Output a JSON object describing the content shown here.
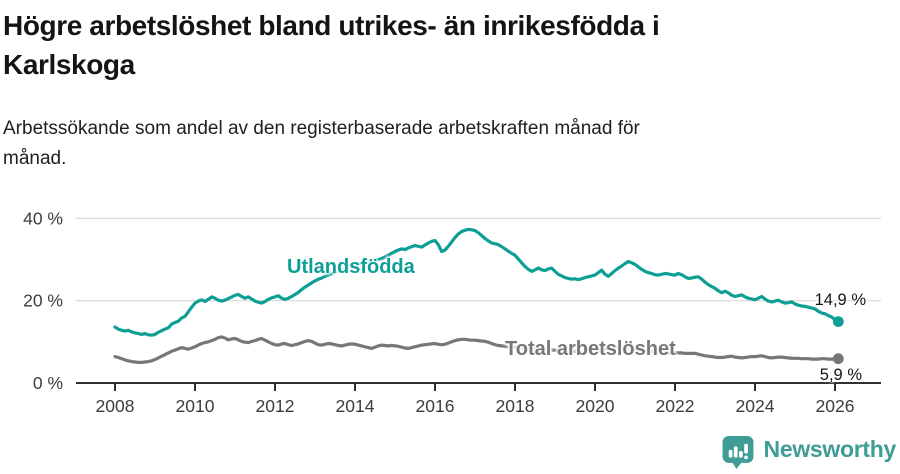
{
  "header": {
    "title_lines": [
      "Högre arbetslöshet bland utrikes- än inrikesfödda i",
      "Karlskoga"
    ],
    "subtitle_lines": [
      "Arbetssökande som andel av den registerbaserade arbetskraften månad för",
      "månad."
    ]
  },
  "logo": {
    "text": "Newsworthy",
    "color": "#3f9d96"
  },
  "chart_data": {
    "type": "line",
    "title": "Högre arbetslöshet bland utrikes- än inrikesfödda i Karlskoga",
    "subtitle": "Arbetssökande som andel av den registerbaserade arbetskraften månad för månad.",
    "x_unit": "decimal-year (monthly steps)",
    "x_start": 2008.0,
    "x_step": 0.0833333,
    "xlim": [
      2007.0,
      2027.1
    ],
    "ylim": [
      0,
      43
    ],
    "grid_on": true,
    "grid_values": [
      20,
      40
    ],
    "x_ticks": [
      2008,
      2010,
      2012,
      2014,
      2016,
      2018,
      2020,
      2022,
      2024,
      2026
    ],
    "y_ticks": [
      {
        "v": 0,
        "label": "0 %"
      },
      {
        "v": 20,
        "label": "20 %"
      },
      {
        "v": 40,
        "label": "40 %"
      }
    ],
    "colors": {
      "grid": "#dcdcdc",
      "axis": "#2f2f2f",
      "tick_text": "#3c3c3c",
      "value_text": "#141414"
    },
    "series": [
      {
        "name": "Utlandsfödda",
        "color": "#0d9f96",
        "end_label": "14,9 %",
        "end_value": 14.9,
        "values": [
          13.6,
          13.1,
          12.8,
          12.6,
          12.8,
          12.4,
          12.2,
          12.0,
          11.8,
          12.0,
          11.7,
          11.6,
          11.8,
          12.3,
          12.7,
          13.1,
          13.4,
          14.3,
          14.7,
          15.0,
          15.8,
          16.2,
          17.3,
          18.4,
          19.4,
          19.9,
          20.2,
          19.8,
          20.3,
          20.9,
          20.6,
          20.1,
          19.9,
          20.1,
          20.5,
          20.9,
          21.3,
          21.5,
          21.0,
          20.6,
          20.9,
          20.4,
          19.9,
          19.6,
          19.4,
          19.8,
          20.3,
          20.7,
          20.9,
          21.2,
          20.6,
          20.3,
          20.6,
          21.0,
          21.5,
          22.0,
          22.7,
          23.3,
          23.8,
          24.3,
          24.8,
          25.2,
          25.5,
          25.9,
          26.2,
          26.6,
          26.9,
          27.2,
          27.5,
          27.8,
          28.1,
          28.4,
          28.7,
          28.9,
          29.1,
          29.3,
          29.5,
          29.7,
          29.8,
          30.0,
          30.2,
          30.6,
          31.0,
          31.5,
          31.9,
          32.3,
          32.6,
          32.4,
          32.8,
          33.1,
          33.4,
          33.2,
          33.0,
          33.5,
          34.0,
          34.4,
          34.6,
          33.6,
          31.9,
          32.3,
          33.2,
          34.3,
          35.3,
          36.2,
          36.8,
          37.1,
          37.3,
          37.2,
          37.0,
          36.5,
          35.8,
          35.1,
          34.5,
          34.0,
          33.8,
          33.6,
          33.1,
          32.6,
          32.0,
          31.5,
          31.0,
          30.1,
          29.2,
          28.3,
          27.6,
          27.1,
          27.5,
          27.9,
          27.5,
          27.3,
          27.7,
          27.9,
          27.1,
          26.4,
          26.0,
          25.6,
          25.4,
          25.2,
          25.3,
          25.1,
          25.3,
          25.6,
          25.8,
          26.0,
          26.2,
          26.8,
          27.4,
          26.4,
          25.9,
          26.6,
          27.3,
          27.9,
          28.4,
          29.0,
          29.5,
          29.2,
          28.8,
          28.2,
          27.6,
          27.1,
          26.8,
          26.6,
          26.3,
          26.2,
          26.4,
          26.6,
          26.5,
          26.3,
          26.2,
          26.6,
          26.3,
          25.8,
          25.4,
          25.5,
          25.7,
          25.8,
          25.2,
          24.5,
          23.9,
          23.4,
          23.0,
          22.4,
          21.9,
          22.3,
          21.9,
          21.3,
          21.0,
          21.2,
          21.4,
          20.9,
          20.6,
          20.4,
          20.2,
          20.6,
          21.0,
          20.4,
          19.9,
          19.7,
          19.9,
          20.1,
          19.7,
          19.4,
          19.5,
          19.7,
          19.2,
          18.9,
          18.7,
          18.6,
          18.4,
          18.2,
          18.0,
          17.4,
          17.0,
          16.8,
          16.4,
          16.0,
          15.4,
          14.9
        ]
      },
      {
        "name": "Total arbetslöshet",
        "color": "#76767b",
        "end_label": "5,9 %",
        "end_value": 5.9,
        "values": [
          6.4,
          6.2,
          5.9,
          5.6,
          5.4,
          5.2,
          5.1,
          5.0,
          5.0,
          5.1,
          5.2,
          5.4,
          5.7,
          6.1,
          6.5,
          6.9,
          7.3,
          7.7,
          8.0,
          8.3,
          8.6,
          8.4,
          8.2,
          8.5,
          8.8,
          9.2,
          9.6,
          9.8,
          10.0,
          10.3,
          10.6,
          11.0,
          11.2,
          10.9,
          10.5,
          10.7,
          10.8,
          10.5,
          10.1,
          9.9,
          9.8,
          10.1,
          10.3,
          10.6,
          10.8,
          10.4,
          10.0,
          9.6,
          9.3,
          9.2,
          9.5,
          9.6,
          9.3,
          9.1,
          9.3,
          9.5,
          9.8,
          10.1,
          10.3,
          10.1,
          9.7,
          9.3,
          9.2,
          9.4,
          9.6,
          9.5,
          9.3,
          9.1,
          9.0,
          9.2,
          9.4,
          9.5,
          9.4,
          9.2,
          9.0,
          8.8,
          8.6,
          8.4,
          8.7,
          9.0,
          9.2,
          9.1,
          9.0,
          9.1,
          9.0,
          8.9,
          8.7,
          8.5,
          8.4,
          8.6,
          8.8,
          9.0,
          9.2,
          9.3,
          9.4,
          9.5,
          9.6,
          9.4,
          9.3,
          9.4,
          9.7,
          10.0,
          10.3,
          10.5,
          10.6,
          10.6,
          10.5,
          10.4,
          10.4,
          10.3,
          10.2,
          10.1,
          9.9,
          9.6,
          9.3,
          9.1,
          9.0,
          8.9,
          8.8,
          8.8,
          8.7,
          8.6,
          8.5,
          8.4,
          8.3,
          8.3,
          8.2,
          8.2,
          8.1,
          8.1,
          8.1,
          8.0,
          8.0,
          7.9,
          7.9,
          7.8,
          7.8,
          7.8,
          7.7,
          7.7,
          7.7,
          7.7,
          7.7,
          7.8,
          7.8,
          7.9,
          8.1,
          8.3,
          8.5,
          8.6,
          8.7,
          8.7,
          8.6,
          8.5,
          8.4,
          8.3,
          8.2,
          8.1,
          8.0,
          7.9,
          7.8,
          7.7,
          7.6,
          7.6,
          7.5,
          7.5,
          7.4,
          7.4,
          7.3,
          7.3,
          7.3,
          7.2,
          7.2,
          7.2,
          7.2,
          7.0,
          6.8,
          6.6,
          6.5,
          6.4,
          6.3,
          6.2,
          6.2,
          6.3,
          6.4,
          6.5,
          6.3,
          6.2,
          6.1,
          6.2,
          6.3,
          6.4,
          6.4,
          6.5,
          6.6,
          6.4,
          6.2,
          6.1,
          6.2,
          6.3,
          6.3,
          6.2,
          6.1,
          6.0,
          6.0,
          6.0,
          5.9,
          5.9,
          5.9,
          5.8,
          5.8,
          5.8,
          5.9,
          5.9,
          5.8,
          5.8,
          5.8,
          5.9
        ]
      }
    ]
  }
}
